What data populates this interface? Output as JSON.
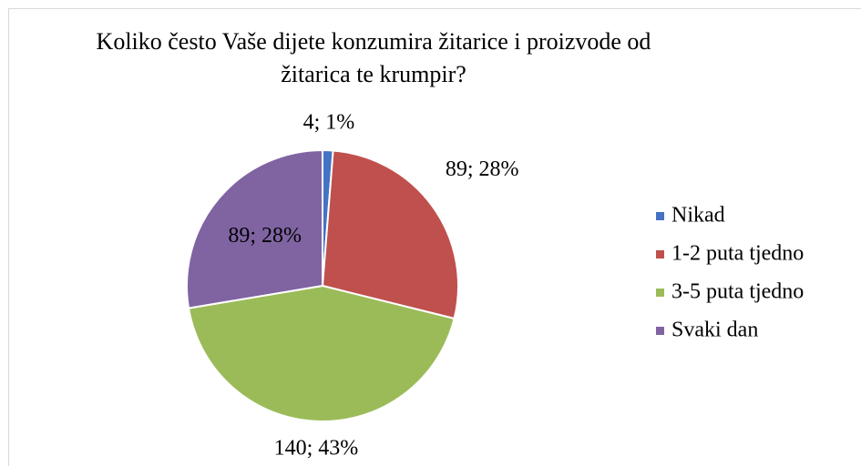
{
  "chart_data": {
    "type": "pie",
    "title": "Koliko često Vaše dijete konzumira žitarice i proizvode od žitarica te krumpir?",
    "categories": [
      "Nikad",
      "1-2 puta tjedno",
      "3-5 puta tjedno",
      "Svaki dan"
    ],
    "values": [
      4,
      89,
      140,
      89
    ],
    "value_labels": [
      "4; 1%",
      "89; 28%",
      "140; 43%",
      "89; 28%"
    ],
    "colors": [
      "#4472c4",
      "#c0504d",
      "#9bbb59",
      "#8064a2"
    ],
    "legend": "right"
  }
}
